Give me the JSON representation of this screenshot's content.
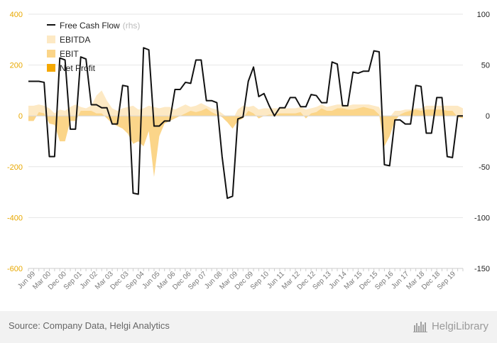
{
  "chart_data": {
    "type": "line",
    "title": "",
    "xlabel": "",
    "ylabel_left": "",
    "ylabel_right": "",
    "left_ylim": [
      -600,
      400
    ],
    "left_ticks": [
      "400",
      "200",
      "0",
      "-200",
      "-400",
      "-600"
    ],
    "right_ylim": [
      -150,
      100
    ],
    "right_ticks": [
      "100",
      "50",
      "0",
      "-50",
      "-100",
      "-150"
    ],
    "grid": true,
    "legend_position": "top-left",
    "x_tick_labels": [
      "Jun 99",
      "Mar 00",
      "Dec 00",
      "Sep 01",
      "Jun 02",
      "Mar 03",
      "Dec 03",
      "Sep 04",
      "Jun 05",
      "Mar 06",
      "Dec 06",
      "Sep 07",
      "Jun 08",
      "Mar 09",
      "Dec 09",
      "Sep 10",
      "Jun 11",
      "Mar 12",
      "Dec 12",
      "Sep 13",
      "Jun 14",
      "Mar 15",
      "Dec 15",
      "Sep 16",
      "Jun 17",
      "Mar 18",
      "Dec 18",
      "Sep 19"
    ],
    "series": [
      {
        "name": "Free Cash Flow",
        "name_suffix": "(rhs)",
        "axis": "right",
        "kind": "line",
        "color": "#111111",
        "values": [
          34,
          34,
          34,
          33,
          -40,
          -40,
          57,
          55,
          -13,
          -13,
          58,
          56,
          11,
          11,
          8,
          8,
          -8,
          -8,
          30,
          29,
          -76,
          -77,
          67,
          65,
          -10,
          -10,
          -5,
          -5,
          26,
          26,
          33,
          32,
          55,
          55,
          15,
          15,
          13,
          -40,
          -81,
          -79,
          -3,
          -1,
          34,
          48,
          19,
          22,
          10,
          0,
          8,
          8,
          18,
          18,
          9,
          9,
          21,
          20,
          13,
          13,
          53,
          51,
          10,
          10,
          43,
          42,
          44,
          44,
          64,
          63,
          -48,
          -49,
          -4,
          -4,
          -8,
          -8,
          30,
          29,
          -17,
          -17,
          18,
          18,
          -40,
          -41,
          0,
          0
        ]
      },
      {
        "name": "EBITDA",
        "axis": "left",
        "kind": "area",
        "color": "#fde9c4",
        "values": [
          40,
          40,
          45,
          40,
          30,
          10,
          25,
          20,
          35,
          45,
          35,
          30,
          40,
          80,
          100,
          60,
          30,
          20,
          30,
          35,
          40,
          25,
          30,
          40,
          35,
          30,
          35,
          35,
          25,
          35,
          45,
          35,
          40,
          50,
          40,
          30,
          25,
          10,
          -5,
          -15,
          25,
          40,
          35,
          40,
          25,
          30,
          30,
          30,
          30,
          30,
          30,
          30,
          35,
          25,
          30,
          35,
          45,
          35,
          40,
          45,
          45,
          40,
          45,
          45,
          45,
          45,
          40,
          35,
          -10,
          -5,
          20,
          20,
          25,
          25,
          30,
          30,
          40,
          40,
          40,
          40,
          40,
          40,
          40,
          30
        ]
      },
      {
        "name": "EBIT",
        "axis": "left",
        "kind": "area",
        "color": "#fbd589",
        "values": [
          -20,
          -20,
          15,
          10,
          -30,
          -35,
          -100,
          -100,
          -20,
          -20,
          20,
          20,
          20,
          10,
          10,
          -10,
          -30,
          -40,
          -50,
          -70,
          -110,
          -100,
          -120,
          -60,
          -240,
          -80,
          -30,
          -20,
          -10,
          0,
          10,
          20,
          15,
          20,
          30,
          15,
          5,
          -5,
          -25,
          -50,
          -20,
          -10,
          20,
          10,
          -10,
          0,
          5,
          5,
          10,
          10,
          10,
          10,
          15,
          -10,
          10,
          15,
          30,
          20,
          20,
          30,
          30,
          25,
          25,
          30,
          35,
          30,
          25,
          5,
          -120,
          -80,
          -20,
          5,
          15,
          20,
          25,
          20,
          25,
          25,
          25,
          25,
          20,
          20,
          -5,
          -10
        ]
      },
      {
        "name": "Net Profit",
        "axis": "left",
        "kind": "area",
        "color": "#f5a800",
        "values": []
      }
    ]
  },
  "source_text": "Source: Company Data, Helgi Analytics",
  "brand_text": "HelgiLibrary"
}
